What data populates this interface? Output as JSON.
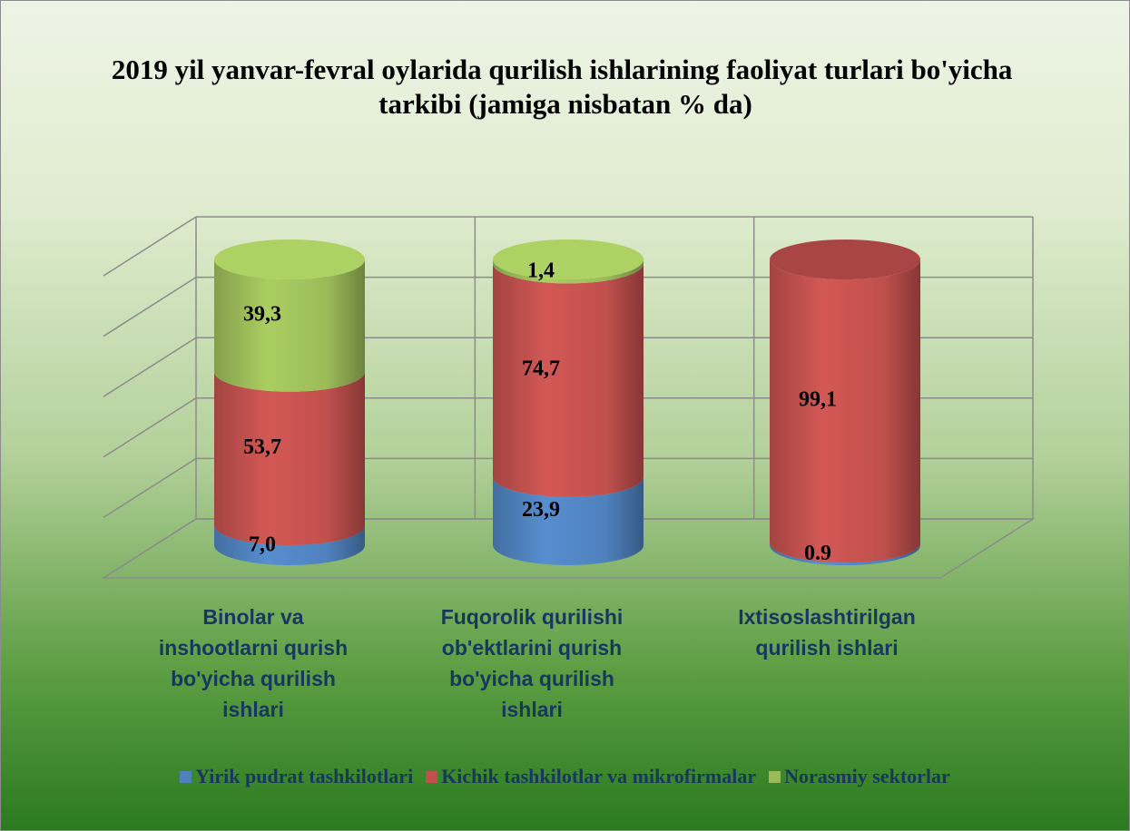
{
  "chart_data": {
    "type": "bar3d_stacked_cylinder",
    "title": "2019 yil yanvar-fevral oylarida qurilish ishlarining faoliyat turlari bo'yicha tarkibi (jamiga nisbatan % da)",
    "categories": [
      "Binolar va inshootlarni qurish bo'yicha qurilish ishlari",
      "Fuqorolik qurilishi ob'ektlarini qurish bo'yicha qurilish ishlari",
      "Ixtisoslashtirilgan qurilish ishlari"
    ],
    "series": [
      {
        "name": "Yirik pudrat tashkilotlari",
        "color": "#4f81bd",
        "values": [
          7.0,
          23.9,
          0.9
        ],
        "value_labels": [
          "7,0",
          "23,9",
          "0.9"
        ]
      },
      {
        "name": "Kichik tashkilotlar va mikrofirmalar",
        "color": "#c0504d",
        "values": [
          53.7,
          74.7,
          99.1
        ],
        "value_labels": [
          "53,7",
          "74,7",
          "99,1"
        ]
      },
      {
        "name": "Norasmiy sektorlar",
        "color": "#9bbb59",
        "values": [
          39.3,
          1.4,
          null
        ],
        "value_labels": [
          "39,3",
          "1,4",
          null
        ]
      }
    ],
    "ylim": [
      0,
      100
    ],
    "yticks": [
      0,
      20,
      40,
      60,
      80,
      100
    ],
    "grid": true,
    "legend": "bottom"
  }
}
